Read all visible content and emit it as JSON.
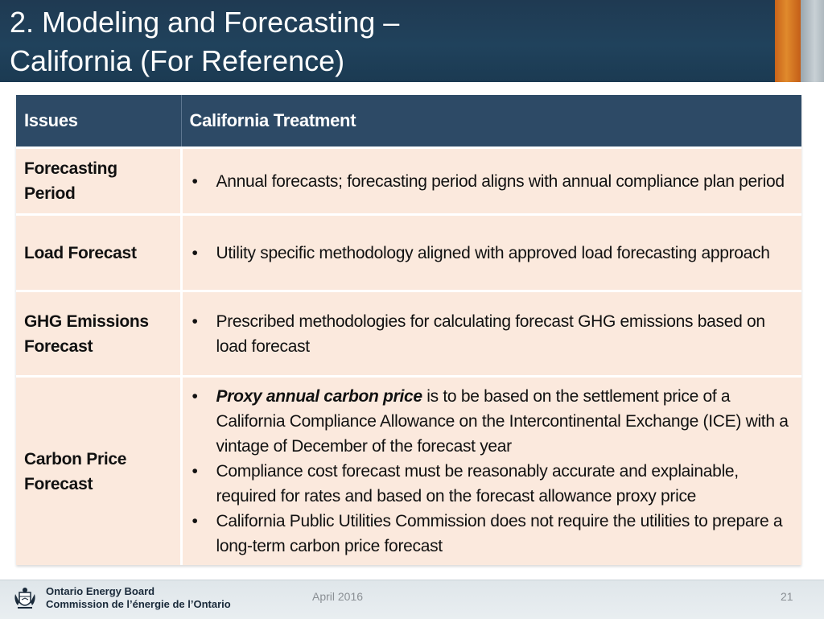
{
  "header": {
    "title_line1": "2. Modeling and Forecasting –",
    "title_line2": "California (For Reference)"
  },
  "table": {
    "columns": [
      "Issues",
      "California Treatment"
    ],
    "rows": [
      {
        "issue": "Forecasting Period",
        "bullets": [
          "Annual forecasts; forecasting period aligns with annual compliance plan period"
        ]
      },
      {
        "issue": "Load Forecast",
        "bullets": [
          "Utility specific methodology aligned with approved load forecasting approach"
        ]
      },
      {
        "issue": "GHG Emissions Forecast",
        "bullets": [
          "Prescribed methodologies for calculating forecast GHG emissions based on load forecast"
        ]
      },
      {
        "issue": "Carbon Price Forecast",
        "bullet1_emphasis": "Proxy annual carbon price",
        "bullet1_rest": " is to be based on the settlement price of a California Compliance Allowance on the Intercontinental Exchange (ICE) with a vintage of December of the forecast year",
        "bullets": [
          "Compliance cost forecast must be reasonably accurate and explainable, required for rates and based on the forecast allowance proxy price",
          "California Public Utilities Commission does not require the utilities to prepare a long-term carbon price forecast"
        ]
      }
    ]
  },
  "footer": {
    "org_en": "Ontario Energy Board",
    "org_fr": "Commission de l’énergie de l’Ontario",
    "date": "April 2016",
    "page": "21",
    "logo_icon": "ontario-coat-of-arms-icon"
  },
  "colors": {
    "header_bg": "#1f3a52",
    "table_header_bg": "#2d4a66",
    "cell_bg": "#fbe9dd",
    "accent_orange": "#e08a2c"
  }
}
